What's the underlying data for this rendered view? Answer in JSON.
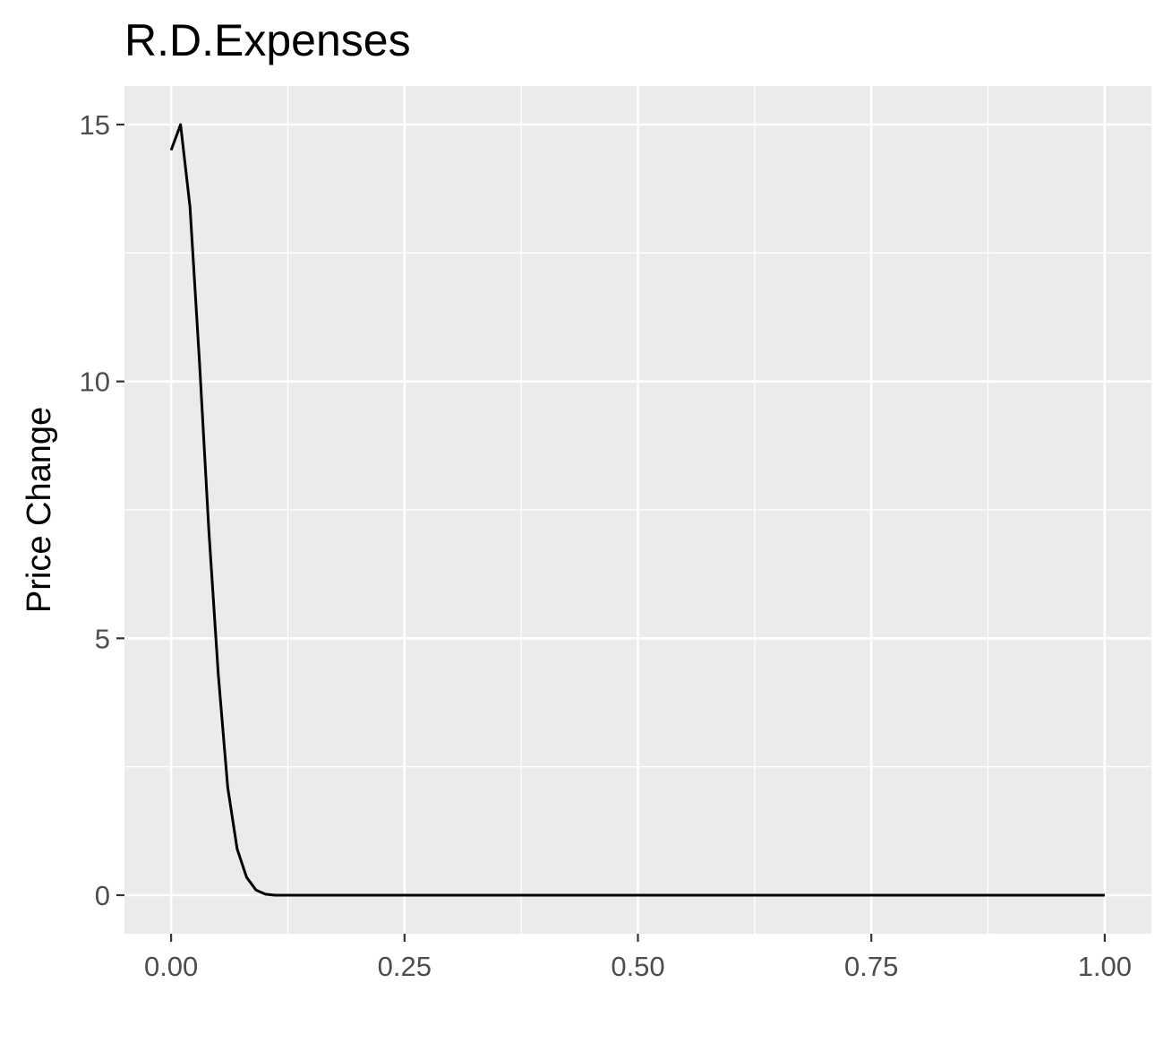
{
  "chart_data": {
    "type": "line",
    "title": "R.D.Expenses",
    "xlabel": "",
    "ylabel": "Price Change",
    "xlim": [
      -0.05,
      1.05
    ],
    "ylim": [
      -0.75,
      15.75
    ],
    "x_ticks": [
      0.0,
      0.25,
      0.5,
      0.75,
      1.0
    ],
    "x_tick_labels": [
      "0.00",
      "0.25",
      "0.50",
      "0.75",
      "1.00"
    ],
    "y_ticks": [
      0,
      5,
      10,
      15
    ],
    "y_tick_labels": [
      "0",
      "5",
      "10",
      "15"
    ],
    "grid": true,
    "colors": {
      "panel_background": "#ebebeb",
      "grid_line": "#ffffff",
      "series_line": "#000000",
      "tick_mark": "#333333"
    },
    "series": [
      {
        "name": "Price Change",
        "x": [
          0.0,
          0.0101,
          0.0202,
          0.0303,
          0.0404,
          0.0505,
          0.0606,
          0.0707,
          0.0808,
          0.0909,
          0.101,
          0.111,
          0.2,
          0.3,
          0.4,
          0.5,
          0.6,
          0.7,
          0.8,
          0.9,
          1.0
        ],
        "y": [
          14.5,
          15.0,
          13.4,
          10.4,
          7.1,
          4.3,
          2.1,
          0.9,
          0.35,
          0.1,
          0.02,
          0.0,
          0.0,
          0.0,
          0.0,
          0.0,
          0.0,
          0.0,
          0.0,
          0.0,
          0.0
        ]
      }
    ]
  }
}
